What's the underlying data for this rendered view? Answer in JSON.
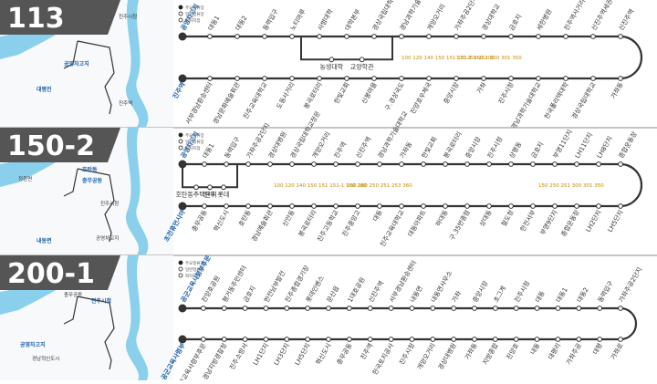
{
  "legend": [
    "주요정류장",
    "일반정류장",
    "회차지점"
  ],
  "panels": [
    {
      "route": "113",
      "map_labels": [
        "진주시청",
        "공영차고지",
        "진주역",
        "대평진"
      ],
      "stops_top": [
        "공영차고지",
        "대동1",
        "대동2",
        "동력입구",
        "노티마루",
        "사범대학",
        "대학본부",
        "경상국립대학교정문",
        "경남과학기술대학교앞",
        "개양오거리",
        "가좌주공2단지",
        "경상대학교",
        "금호지",
        "세한병원",
        "진주역사거리",
        "신진주역세권",
        "신진주역"
      ],
      "stops_bottom": [
        "진주역",
        "서부경남환승센터",
        "경남문화예술회관",
        "진주교육대학교",
        "도동사거리",
        "봉곡로터리",
        "한빛교회",
        "신봉마을",
        "구.경상국도",
        "진양호우체국",
        "중앙시장",
        "가좌",
        "진주시청",
        "경남과학기술대학교",
        "한국폴리텍대학",
        "경상국립대학교",
        "가좌동"
      ],
      "branch": [
        "농생대학",
        "교양학관"
      ],
      "notes": [
        "100 120 140 150 151 151-1 160 200",
        "120 250 251 300 301 350"
      ]
    },
    {
      "route": "150-2",
      "map_labels": [
        "정촌면",
        "충무공동",
        "진주시청",
        "호탄동",
        "공영차고지",
        "내동면"
      ],
      "stops_top": [
        "공영차고지",
        "대동1",
        "동력입구",
        "가좌주공2단지",
        "경상대병원",
        "경상국립대학교정문",
        "개양오거리",
        "진주역",
        "신진주역",
        "경남과학기술대학교",
        "가좌동",
        "한빛교회",
        "봉곡로터리",
        "중앙시장",
        "진주시청",
        "상평동",
        "금호지",
        "부영11단지",
        "LH11단지",
        "LH8단지",
        "종합운동장"
      ],
      "stops_bottom": [
        "초전휴먼시아",
        "충무공동",
        "혁신도시",
        "호탄동",
        "경남예술회관",
        "신안동",
        "봉곡로터리",
        "진주고등학교",
        "진주중앙고",
        "대동",
        "진주교육대학교",
        "대동아파트",
        "하대동",
        "구.35번종점",
        "상대동",
        "철도청",
        "한전서부",
        "부영9단지",
        "종합운동장",
        "LH2단지",
        "LH5단지"
      ],
      "branch": [
        "호탄동주택단지",
        "원우",
        "롯데"
      ],
      "notes": [
        "100 120 140 150 151 151-1 160 200",
        "150 160 250 251 253 360",
        "150 250 251 300 301 350"
      ]
    },
    {
      "route": "200-1",
      "map_labels": [
        "공군교육사령부후문",
        "진주시청",
        "충무공동",
        "공영차고지",
        "경남혁신도시"
      ],
      "stops_top": [
        "공군교육사령부후문",
        "진양호공원",
        "평거동주민센터",
        "금호지",
        "한전남부발전",
        "진주종합경기장",
        "롯데인벤스",
        "문산읍",
        "1대호공원",
        "신진주역",
        "서부경남환승센터",
        "내동면",
        "내동면사무소",
        "가좌",
        "중앙시장",
        "초그계",
        "진주시청",
        "대동",
        "대동1",
        "대동2",
        "동력입구",
        "가좌주공2단지"
      ],
      "stops_bottom": [
        "공군교육사령부",
        "공군교육사령부후문",
        "경남지방경찰청",
        "진주소방서",
        "LH1단지",
        "LH3단지",
        "LH5단지",
        "혁신도시",
        "충무공동",
        "진주역",
        "한국토지공사",
        "진주시청",
        "개양오거리",
        "경상대병원",
        "가좌동",
        "지방종합",
        "진양호",
        "내동",
        "대평리",
        "가좌주공",
        "대평",
        "가좌로"
      ],
      "branch": [],
      "notes": []
    }
  ]
}
